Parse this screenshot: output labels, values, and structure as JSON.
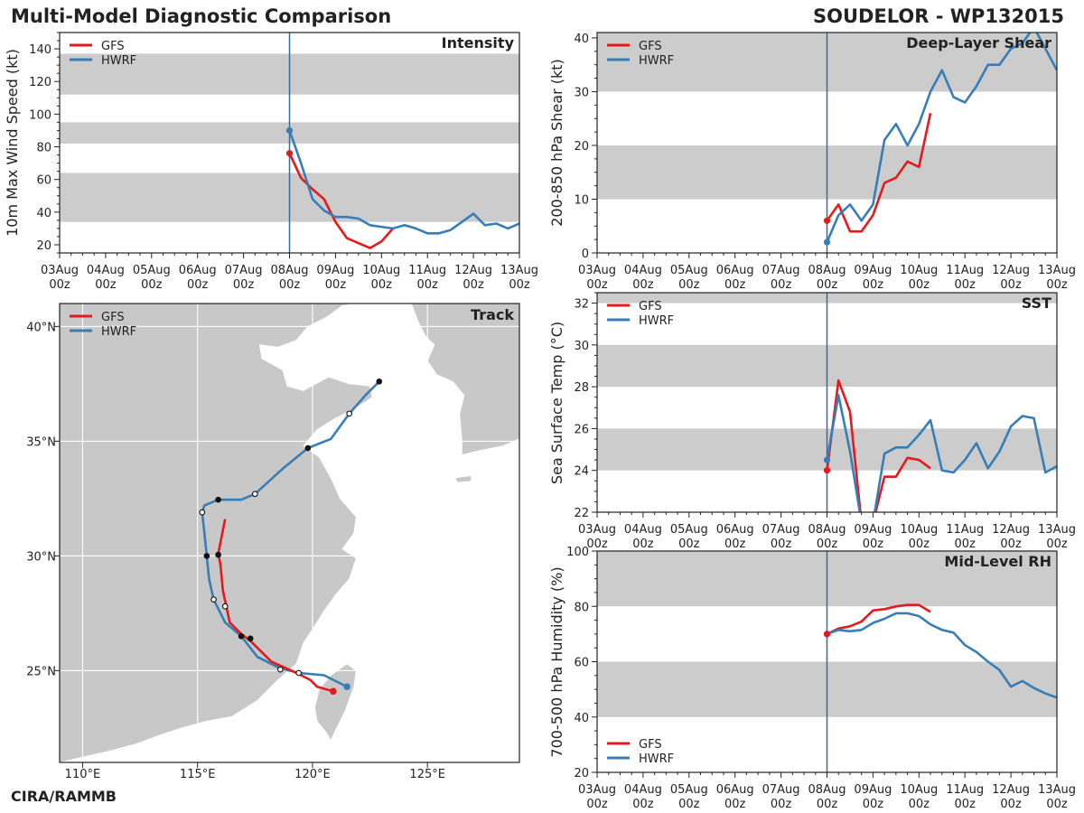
{
  "header": {
    "left_title": "Multi-Model Diagnostic Comparison",
    "right_title": "SOUDELOR - WP132015"
  },
  "footer": {
    "credit": "CIRA/RAMMB"
  },
  "colors": {
    "gfs": "#e41a1c",
    "hwrf": "#377eb8",
    "shade": "#cccccc",
    "land": "#c8c8c8",
    "vline": "#3a6a9a"
  },
  "time_axis": {
    "labels": [
      [
        "03Aug",
        "00z"
      ],
      [
        "04Aug",
        "00z"
      ],
      [
        "05Aug",
        "00z"
      ],
      [
        "06Aug",
        "00z"
      ],
      [
        "07Aug",
        "00z"
      ],
      [
        "08Aug",
        "00z"
      ],
      [
        "09Aug",
        "00z"
      ],
      [
        "10Aug",
        "00z"
      ],
      [
        "11Aug",
        "00z"
      ],
      [
        "12Aug",
        "00z"
      ],
      [
        "13Aug",
        "00z"
      ]
    ],
    "init_day": 5
  },
  "chart_data": [
    {
      "id": "intensity",
      "type": "line",
      "title": "Intensity",
      "ylabel": "10m Max Wind Speed (kt)",
      "xlim": [
        0,
        10
      ],
      "ylim": [
        15,
        150
      ],
      "yticks": [
        20,
        40,
        60,
        80,
        100,
        120,
        140
      ],
      "bands": [
        [
          34,
          64
        ],
        [
          82,
          95
        ],
        [
          112,
          137
        ]
      ],
      "legend": [
        "GFS",
        "HWRF"
      ],
      "legend_position": "top-left",
      "series": [
        {
          "name": "GFS",
          "x": [
            5,
            5.25,
            5.5,
            5.75,
            6,
            6.25,
            6.5,
            6.75,
            7,
            7.25
          ],
          "y": [
            76,
            61,
            54,
            48,
            34,
            24,
            21,
            18,
            22,
            30
          ]
        },
        {
          "name": "HWRF",
          "x": [
            5,
            5.25,
            5.5,
            5.75,
            6,
            6.25,
            6.5,
            6.75,
            7,
            7.25,
            7.5,
            7.75,
            8,
            8.25,
            8.5,
            8.75,
            9,
            9.25,
            9.5,
            9.75,
            10
          ],
          "y": [
            90,
            70,
            48,
            41,
            37,
            37,
            36,
            32,
            31,
            30,
            32,
            30,
            27,
            27,
            29,
            34,
            39,
            32,
            33,
            30,
            33
          ]
        }
      ]
    },
    {
      "id": "shear",
      "type": "line",
      "title": "Deep-Layer Shear",
      "ylabel": "200-850 hPa Shear (kt)",
      "xlim": [
        0,
        10
      ],
      "ylim": [
        0,
        41
      ],
      "yticks": [
        0,
        10,
        20,
        30,
        40
      ],
      "bands": [
        [
          10,
          20
        ],
        [
          30,
          41
        ]
      ],
      "legend": [
        "GFS",
        "HWRF"
      ],
      "legend_position": "top-left",
      "series": [
        {
          "name": "GFS",
          "x": [
            5,
            5.25,
            5.5,
            5.75,
            6,
            6.25,
            6.5,
            6.75,
            7,
            7.25
          ],
          "y": [
            6,
            9,
            4,
            4,
            7,
            13,
            14,
            17,
            16,
            26
          ]
        },
        {
          "name": "HWRF",
          "x": [
            5,
            5.25,
            5.5,
            5.75,
            6,
            6.25,
            6.5,
            6.75,
            7,
            7.25,
            7.5,
            7.75,
            8,
            8.25,
            8.5,
            8.75,
            9,
            9.25,
            9.5,
            9.75,
            10
          ],
          "y": [
            2,
            7,
            9,
            6,
            9,
            21,
            24,
            20,
            24,
            30,
            34,
            29,
            28,
            31,
            35,
            35,
            38,
            39,
            42,
            38,
            34
          ]
        }
      ]
    },
    {
      "id": "sst",
      "type": "line",
      "title": "SST",
      "ylabel": "Sea Surface Temp (°C)",
      "xlim": [
        0,
        10
      ],
      "ylim": [
        22,
        32.5
      ],
      "yticks": [
        22,
        24,
        26,
        28,
        30,
        32
      ],
      "bands": [
        [
          24,
          26
        ],
        [
          28,
          30
        ],
        [
          32,
          32.5
        ]
      ],
      "legend": [
        "GFS",
        "HWRF"
      ],
      "legend_position": "top-left",
      "series": [
        {
          "name": "GFS",
          "x": [
            5,
            5.25,
            5.5,
            5.75,
            6,
            6.25,
            6.5,
            6.75,
            7,
            7.25
          ],
          "y": [
            24,
            28.3,
            26.8,
            21.5,
            21.5,
            23.7,
            23.7,
            24.6,
            24.5,
            24.1
          ]
        },
        {
          "name": "HWRF",
          "x": [
            5,
            5.25,
            5.5,
            5.75,
            6,
            6.25,
            6.5,
            6.75,
            7,
            7.25,
            7.5,
            7.75,
            8,
            8.25,
            8.5,
            8.75,
            9,
            9.25,
            9.5,
            9.75,
            10
          ],
          "y": [
            24.5,
            27.6,
            24.9,
            21.5,
            21.5,
            24.8,
            25.1,
            25.1,
            25.7,
            26.4,
            24,
            23.9,
            24.5,
            25.3,
            24.1,
            24.9,
            26.1,
            26.6,
            26.5,
            23.9,
            24.2
          ]
        }
      ]
    },
    {
      "id": "rh",
      "type": "line",
      "title": "Mid-Level RH",
      "ylabel": "700-500 hPa Humidity (%)",
      "xlim": [
        0,
        10
      ],
      "ylim": [
        20,
        100
      ],
      "yticks": [
        20,
        40,
        60,
        80,
        100
      ],
      "bands": [
        [
          40,
          60
        ],
        [
          80,
          100
        ]
      ],
      "legend": [
        "GFS",
        "HWRF"
      ],
      "legend_position": "bottom-left",
      "series": [
        {
          "name": "GFS",
          "x": [
            5,
            5.25,
            5.5,
            5.75,
            6,
            6.25,
            6.5,
            6.75,
            7,
            7.25
          ],
          "y": [
            70,
            72,
            72.8,
            74.5,
            78.5,
            79,
            80,
            80.5,
            80.5,
            78
          ]
        },
        {
          "name": "HWRF",
          "x": [
            5,
            5.25,
            5.5,
            5.75,
            6,
            6.25,
            6.5,
            6.75,
            7,
            7.25,
            7.5,
            7.75,
            8,
            8.25,
            8.5,
            8.75,
            9,
            9.25,
            9.5,
            9.75,
            10
          ],
          "y": [
            70,
            71.5,
            71,
            71.5,
            74,
            75.5,
            77.5,
            77.5,
            76.5,
            73.5,
            71.5,
            70.5,
            66,
            63.5,
            60,
            57,
            51,
            53,
            50.5,
            48.5,
            47
          ]
        }
      ]
    },
    {
      "id": "track",
      "type": "scatter",
      "title": "Track",
      "xlim": [
        109,
        129
      ],
      "ylim": [
        21,
        41
      ],
      "xticks": [
        110,
        115,
        120,
        125
      ],
      "xticklabels": [
        "110°E",
        "115°E",
        "120°E",
        "125°E"
      ],
      "yticks": [
        25,
        30,
        35,
        40
      ],
      "yticklabels": [
        "25°N",
        "30°N",
        "35°N",
        "40°N"
      ],
      "legend": [
        "GFS",
        "HWRF"
      ],
      "legend_position": "top-left",
      "series": [
        {
          "name": "GFS",
          "lon": [
            120.9,
            120.2,
            119.9,
            119.3,
            118.2,
            117.3,
            116.9,
            116.4,
            116.1,
            116.0,
            115.9,
            116.2
          ],
          "lat": [
            24.1,
            24.3,
            24.6,
            24.9,
            25.4,
            26.3,
            26.6,
            27.1,
            28.5,
            29.6,
            30.1,
            31.6
          ],
          "markers": [
            {
              "lon": 120.9,
              "lat": 24.1,
              "kind": "init"
            },
            {
              "lon": 117.3,
              "lat": 26.4,
              "kind": "black"
            },
            {
              "lon": 116.9,
              "lat": 26.5,
              "kind": "black"
            },
            {
              "lon": 115.9,
              "lat": 30.05,
              "kind": "black"
            }
          ]
        },
        {
          "name": "HWRF",
          "lon": [
            121.5,
            120.5,
            119.4,
            118.6,
            117.6,
            116.9,
            116.2,
            115.7,
            115.5,
            115.4,
            115.3,
            115.2,
            115.3,
            115.9,
            116.9,
            117.5,
            118.7,
            119.8,
            120.8,
            121.6,
            122.3,
            122.9
          ],
          "lat": [
            24.3,
            24.8,
            24.9,
            25.1,
            25.6,
            26.5,
            27.1,
            28.1,
            29.0,
            30.0,
            31.0,
            31.9,
            32.2,
            32.45,
            32.45,
            32.7,
            33.8,
            34.7,
            35.1,
            36.2,
            37.0,
            37.6
          ],
          "markers": [
            {
              "lon": 121.5,
              "lat": 24.3,
              "kind": "init"
            },
            {
              "lon": 119.4,
              "lat": 24.9,
              "kind": "white"
            },
            {
              "lon": 118.6,
              "lat": 25.05,
              "kind": "white"
            },
            {
              "lon": 116.2,
              "lat": 27.8,
              "kind": "white"
            },
            {
              "lon": 115.7,
              "lat": 28.1,
              "kind": "white"
            },
            {
              "lon": 115.4,
              "lat": 30.0,
              "kind": "black"
            },
            {
              "lon": 115.2,
              "lat": 31.9,
              "kind": "white"
            },
            {
              "lon": 115.9,
              "lat": 32.45,
              "kind": "black"
            },
            {
              "lon": 117.5,
              "lat": 32.7,
              "kind": "white"
            },
            {
              "lon": 119.8,
              "lat": 34.7,
              "kind": "black"
            },
            {
              "lon": 121.6,
              "lat": 36.2,
              "kind": "white"
            },
            {
              "lon": 122.9,
              "lat": 37.6,
              "kind": "black"
            }
          ]
        }
      ]
    }
  ]
}
